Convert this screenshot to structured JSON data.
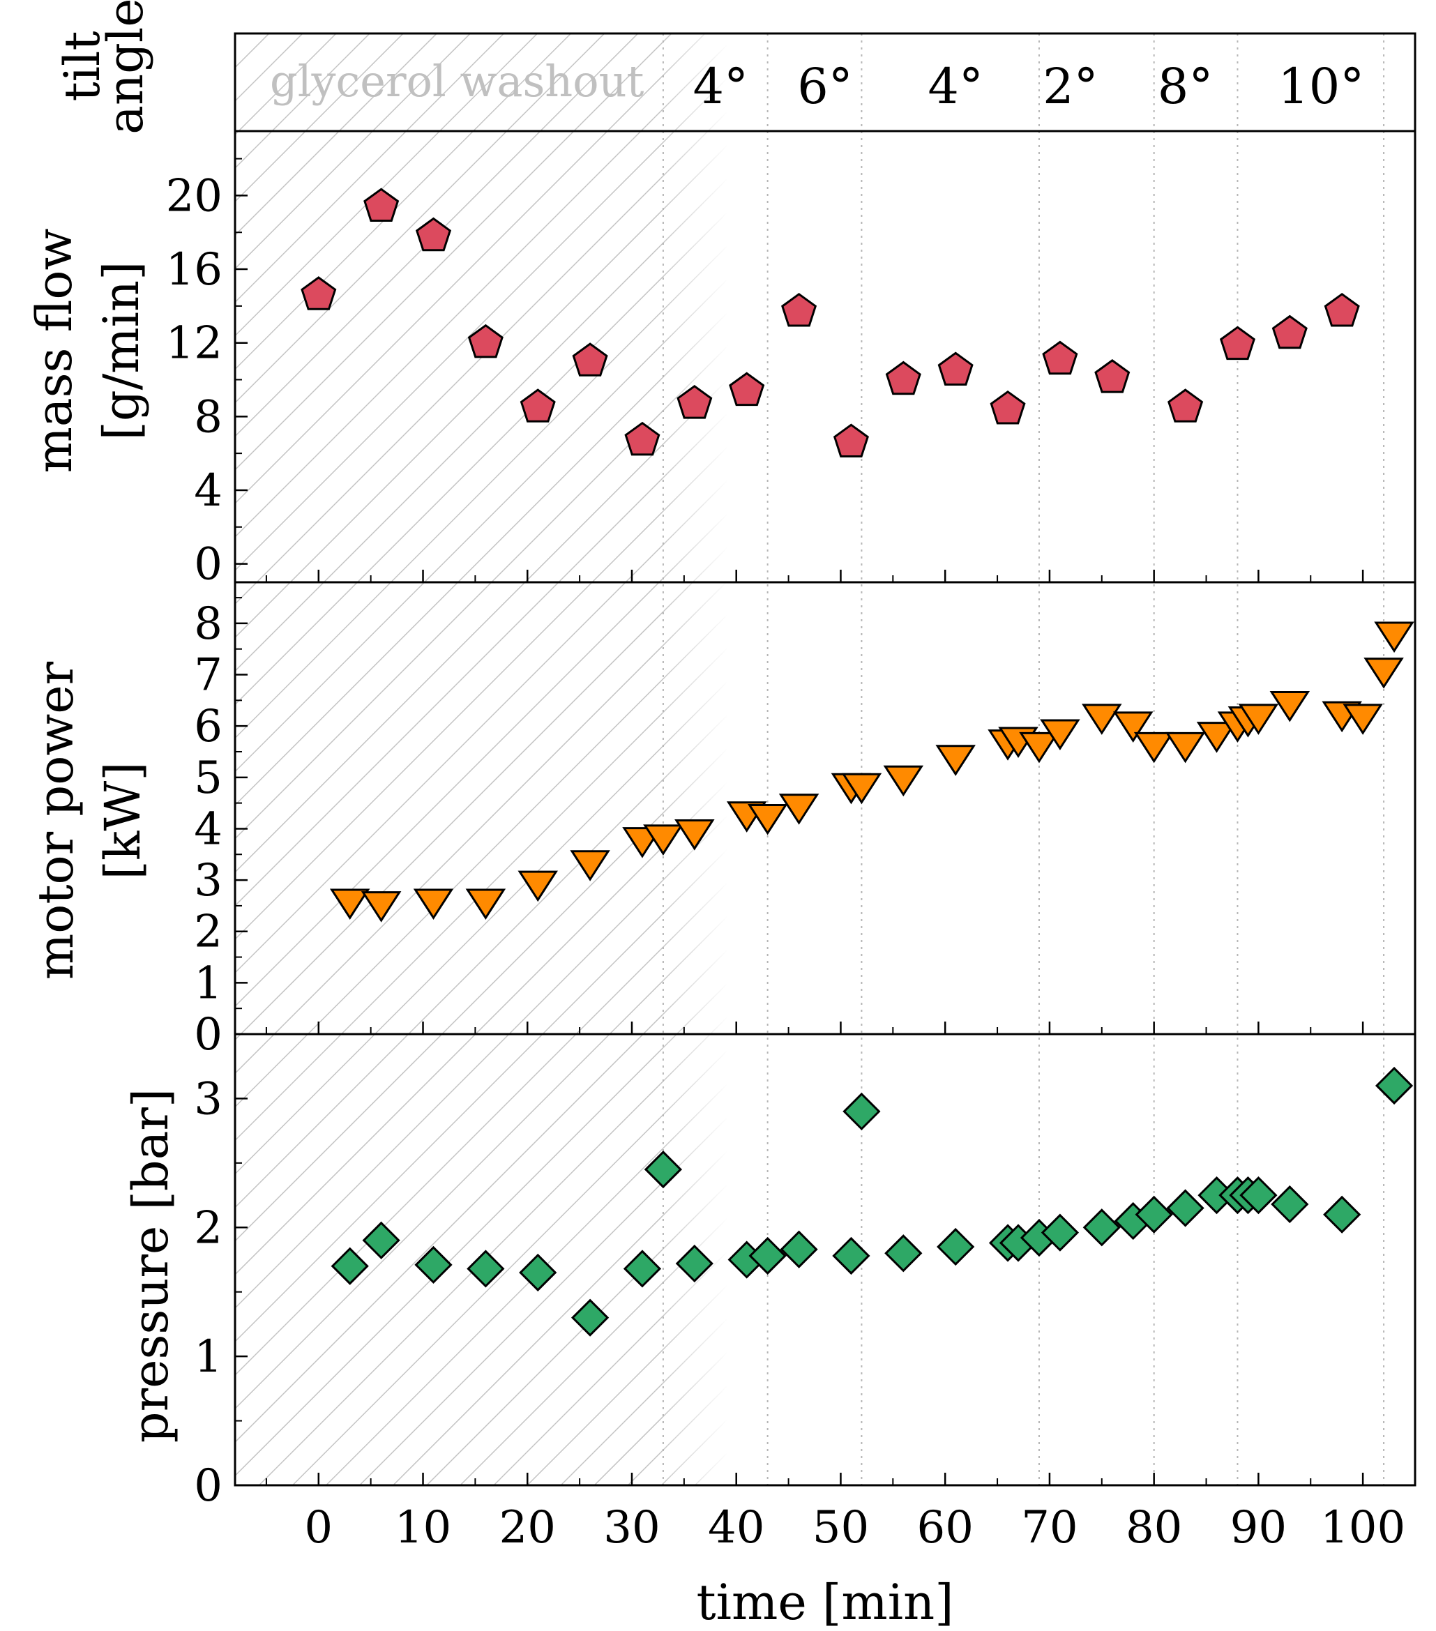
{
  "chart_data": {
    "type": "scatter",
    "x_label": "time [min]",
    "x_ticks": [
      0,
      10,
      20,
      30,
      40,
      50,
      60,
      70,
      80,
      90,
      100
    ],
    "xlim": [
      -8,
      105
    ],
    "tilt_panel": {
      "ylabel_line1": "tilt",
      "ylabel_line2": "angle",
      "washout_label": "glycerol washout",
      "washout_end": 33,
      "dividers": [
        33,
        43,
        52,
        69,
        80,
        88,
        102
      ],
      "labels": [
        {
          "x": 38.5,
          "text": "4°"
        },
        {
          "x": 48.5,
          "text": "6°"
        },
        {
          "x": 61,
          "text": "4°"
        },
        {
          "x": 72,
          "text": "2°"
        },
        {
          "x": 83,
          "text": "8°"
        },
        {
          "x": 96,
          "text": "10°"
        }
      ]
    },
    "panels": [
      {
        "name": "mass-flow",
        "ylabel_line1": "mass flow",
        "ylabel_line2": "[g/min]",
        "ylim": [
          -1,
          23.5
        ],
        "yticks": [
          0,
          4,
          8,
          12,
          16,
          20
        ],
        "minor_step": 2,
        "marker": "pentagon",
        "color": "#dc4a5e",
        "points": [
          [
            0,
            14.6
          ],
          [
            6,
            19.4
          ],
          [
            11,
            17.8
          ],
          [
            16,
            12.0
          ],
          [
            21,
            8.5
          ],
          [
            26,
            11.0
          ],
          [
            31,
            6.7
          ],
          [
            36,
            8.7
          ],
          [
            41,
            9.4
          ],
          [
            46,
            13.7
          ],
          [
            51,
            6.6
          ],
          [
            56,
            10.0
          ],
          [
            61,
            10.5
          ],
          [
            66,
            8.4
          ],
          [
            71,
            11.1
          ],
          [
            76,
            10.1
          ],
          [
            83,
            8.5
          ],
          [
            88,
            11.9
          ],
          [
            93,
            12.5
          ],
          [
            98,
            13.7
          ]
        ]
      },
      {
        "name": "motor-power",
        "ylabel_line1": "motor power",
        "ylabel_line2": "[kW]",
        "ylim": [
          0,
          8.8
        ],
        "yticks": [
          0,
          1,
          2,
          3,
          4,
          5,
          6,
          7,
          8
        ],
        "minor_step": 0.5,
        "marker": "triangle-down",
        "color": "#ff8a00",
        "points": [
          [
            3,
            2.6
          ],
          [
            6,
            2.55
          ],
          [
            11,
            2.6
          ],
          [
            16,
            2.6
          ],
          [
            21,
            2.95
          ],
          [
            26,
            3.35
          ],
          [
            31,
            3.8
          ],
          [
            33,
            3.85
          ],
          [
            36,
            3.95
          ],
          [
            41,
            4.3
          ],
          [
            43,
            4.25
          ],
          [
            46,
            4.45
          ],
          [
            51,
            4.85
          ],
          [
            52,
            4.85
          ],
          [
            56,
            5.0
          ],
          [
            61,
            5.4
          ],
          [
            66,
            5.7
          ],
          [
            67,
            5.75
          ],
          [
            69,
            5.65
          ],
          [
            71,
            5.9
          ],
          [
            75,
            6.2
          ],
          [
            78,
            6.05
          ],
          [
            80,
            5.65
          ],
          [
            83,
            5.65
          ],
          [
            86,
            5.85
          ],
          [
            88,
            6.05
          ],
          [
            89,
            6.15
          ],
          [
            90,
            6.2
          ],
          [
            93,
            6.45
          ],
          [
            98,
            6.25
          ],
          [
            100,
            6.2
          ],
          [
            102,
            7.1
          ],
          [
            103,
            7.8
          ]
        ]
      },
      {
        "name": "pressure",
        "ylabel_line1": "pressure [bar]",
        "ylabel_line2": "",
        "ylim": [
          0,
          3.5
        ],
        "yticks": [
          0,
          1,
          2,
          3
        ],
        "minor_step": 0.5,
        "marker": "diamond",
        "color": "#2ea866",
        "points": [
          [
            3,
            1.7
          ],
          [
            6,
            1.9
          ],
          [
            11,
            1.71
          ],
          [
            16,
            1.68
          ],
          [
            21,
            1.65
          ],
          [
            26,
            1.3
          ],
          [
            31,
            1.68
          ],
          [
            33,
            2.45
          ],
          [
            36,
            1.72
          ],
          [
            41,
            1.75
          ],
          [
            43,
            1.78
          ],
          [
            46,
            1.83
          ],
          [
            51,
            1.78
          ],
          [
            52,
            2.9
          ],
          [
            56,
            1.8
          ],
          [
            61,
            1.85
          ],
          [
            66,
            1.88
          ],
          [
            67,
            1.88
          ],
          [
            69,
            1.92
          ],
          [
            71,
            1.96
          ],
          [
            75,
            2.0
          ],
          [
            78,
            2.05
          ],
          [
            80,
            2.1
          ],
          [
            83,
            2.15
          ],
          [
            86,
            2.25
          ],
          [
            88,
            2.25
          ],
          [
            89,
            2.25
          ],
          [
            90,
            2.25
          ],
          [
            93,
            2.18
          ],
          [
            98,
            2.1
          ],
          [
            103,
            3.1
          ]
        ]
      }
    ]
  }
}
